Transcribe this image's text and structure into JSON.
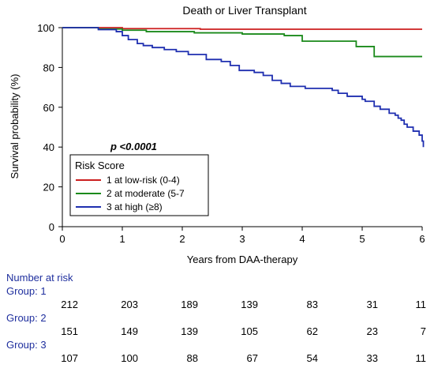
{
  "chart_data": {
    "type": "line",
    "title": "Death or Liver Transplant",
    "xlabel": "Years from DAA-therapy",
    "ylabel": "Survival probability (%)",
    "xlim": [
      0,
      6
    ],
    "ylim": [
      0,
      100
    ],
    "x_ticks": [
      "0",
      "1",
      "2",
      "3",
      "4",
      "5",
      "6"
    ],
    "y_ticks": [
      "0",
      "20",
      "40",
      "60",
      "80",
      "100"
    ],
    "annotation": "p <0.0001",
    "legend": {
      "title": "Risk Score",
      "placement": "lower-left",
      "entries": [
        "1   at low-risk (0-4)",
        "2   at moderate (5-7",
        "3   at high (≥8)"
      ]
    },
    "series": [
      {
        "name": "1   at low-risk (0-4)",
        "color": "#cc1f1f",
        "steps": [
          [
            0,
            100
          ],
          [
            1.0,
            99.5
          ],
          [
            2.3,
            99.2
          ],
          [
            6.0,
            99.2
          ]
        ]
      },
      {
        "name": "2   at moderate (5-7",
        "color": "#1b8a1b",
        "steps": [
          [
            0,
            100
          ],
          [
            0.6,
            99.3
          ],
          [
            1.0,
            98.7
          ],
          [
            1.4,
            98.0
          ],
          [
            2.2,
            97.4
          ],
          [
            3.0,
            96.8
          ],
          [
            3.7,
            96.0
          ],
          [
            4.0,
            93.2
          ],
          [
            4.9,
            90.5
          ],
          [
            5.2,
            85.5
          ],
          [
            6.0,
            85.5
          ]
        ]
      },
      {
        "name": "3   at high (≥8)",
        "color": "#1f2fb0",
        "steps": [
          [
            0,
            100
          ],
          [
            0.6,
            99.0
          ],
          [
            0.9,
            98.0
          ],
          [
            1.0,
            96.0
          ],
          [
            1.1,
            94.0
          ],
          [
            1.25,
            92.0
          ],
          [
            1.35,
            91.0
          ],
          [
            1.5,
            90.0
          ],
          [
            1.7,
            89.0
          ],
          [
            1.9,
            88.0
          ],
          [
            2.1,
            86.5
          ],
          [
            2.4,
            84.0
          ],
          [
            2.65,
            83.0
          ],
          [
            2.8,
            81.0
          ],
          [
            2.95,
            78.5
          ],
          [
            3.2,
            77.5
          ],
          [
            3.35,
            76.0
          ],
          [
            3.5,
            73.5
          ],
          [
            3.65,
            72.0
          ],
          [
            3.8,
            70.5
          ],
          [
            4.05,
            69.5
          ],
          [
            4.5,
            68.5
          ],
          [
            4.6,
            67.0
          ],
          [
            4.75,
            65.5
          ],
          [
            5.0,
            64.0
          ],
          [
            5.05,
            63.0
          ],
          [
            5.2,
            60.5
          ],
          [
            5.3,
            59.0
          ],
          [
            5.45,
            57.0
          ],
          [
            5.55,
            56.0
          ],
          [
            5.6,
            54.5
          ],
          [
            5.65,
            53.5
          ],
          [
            5.7,
            51.5
          ],
          [
            5.75,
            50.0
          ],
          [
            5.85,
            48.0
          ],
          [
            5.95,
            46.0
          ],
          [
            6.0,
            43.0
          ],
          [
            6.02,
            40.0
          ]
        ]
      }
    ]
  },
  "risk_table": {
    "heading": "Number at risk",
    "groups": [
      {
        "label": "Group: 1",
        "values": [
          212,
          203,
          189,
          139,
          83,
          31,
          11
        ]
      },
      {
        "label": "Group: 2",
        "values": [
          151,
          149,
          139,
          105,
          62,
          23,
          7
        ]
      },
      {
        "label": "Group: 3",
        "values": [
          107,
          100,
          88,
          67,
          54,
          33,
          11
        ]
      }
    ]
  }
}
